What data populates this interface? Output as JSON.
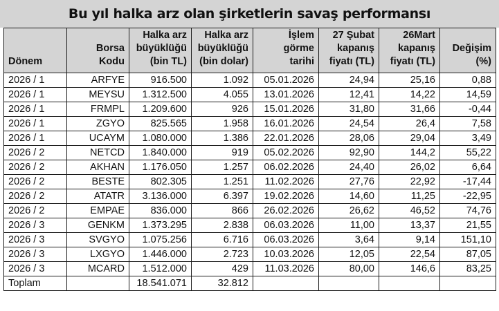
{
  "title": "Bu yıl halka arz olan şirketlerin savaş performansı",
  "headers": {
    "donem": "Dönem",
    "borsa_kodu": [
      "Borsa",
      "Kodu"
    ],
    "arz_tl": [
      "Halka arz",
      "büyüklüğü",
      "(bin TL)"
    ],
    "arz_usd": [
      "Halka arz",
      "büyüklüğü",
      "(bin dolar)"
    ],
    "islem": [
      "İşlem",
      "görme",
      "tarihi"
    ],
    "subat": [
      "27 Şubat",
      "kapanış",
      "fiyatı (TL)"
    ],
    "mart": [
      "26Mart",
      "kapanış",
      "fiyatı (TL)"
    ],
    "degisim": [
      "Değişim",
      "(%)"
    ]
  },
  "rows": [
    [
      "2026 / 1",
      "ARFYE",
      "916.500",
      "1.092",
      "05.01.2026",
      "24,94",
      "25,16",
      "0,88"
    ],
    [
      "2026 / 1",
      "MEYSU",
      "1.312.500",
      "4.055",
      "13.01.2026",
      "12,41",
      "14,22",
      "14,59"
    ],
    [
      "2026 / 1",
      "FRMPL",
      "1.209.600",
      "926",
      "15.01.2026",
      "31,80",
      "31,66",
      "-0,44"
    ],
    [
      "2026 / 1",
      "ZGYO",
      "825.565",
      "1.958",
      "16.01.2026",
      "24,54",
      "26,4",
      "7,58"
    ],
    [
      "2026 / 1",
      "UCAYM",
      "1.080.000",
      "1.386",
      "22.01.2026",
      "28,06",
      "29,04",
      "3,49"
    ],
    [
      "2026 / 2",
      "NETCD",
      "1.840.000",
      "919",
      "05.02.2026",
      "92,90",
      "144,2",
      "55,22"
    ],
    [
      "2026 / 2",
      "AKHAN",
      "1.176.050",
      "1.257",
      "06.02.2026",
      "24,40",
      "26,02",
      "6,64"
    ],
    [
      "2026 / 2",
      "BESTE",
      "802.305",
      "1.251",
      "11.02.2026",
      "27,76",
      "22,92",
      "-17,44"
    ],
    [
      "2026 / 2",
      "ATATR",
      "3.136.000",
      "6.397",
      "19.02.2026",
      "14,60",
      "11,25",
      "-22,95"
    ],
    [
      "2026 / 2",
      "EMPAE",
      "836.000",
      "866",
      "26.02.2026",
      "26,62",
      "46,52",
      "74,76"
    ],
    [
      "2026 / 3",
      "GENKM",
      "1.373.295",
      "2.838",
      "06.03.2026",
      "11,00",
      "13,37",
      "21,55"
    ],
    [
      "2026 / 3",
      "SVGYO",
      "1.075.256",
      "6.716",
      "06.03.2026",
      "3,64",
      "9,14",
      "151,10"
    ],
    [
      "2026 / 3",
      "LXGYO",
      "1.446.000",
      "2.723",
      "10.03.2026",
      "12,05",
      "22,54",
      "87,05"
    ],
    [
      "2026 / 3",
      "MCARD",
      "1.512.000",
      "429",
      "11.03.2026",
      "80,00",
      "146,6",
      "83,25"
    ]
  ],
  "total": {
    "label": "Toplam",
    "arz_tl": "18.541.071",
    "arz_usd": "32.812"
  }
}
